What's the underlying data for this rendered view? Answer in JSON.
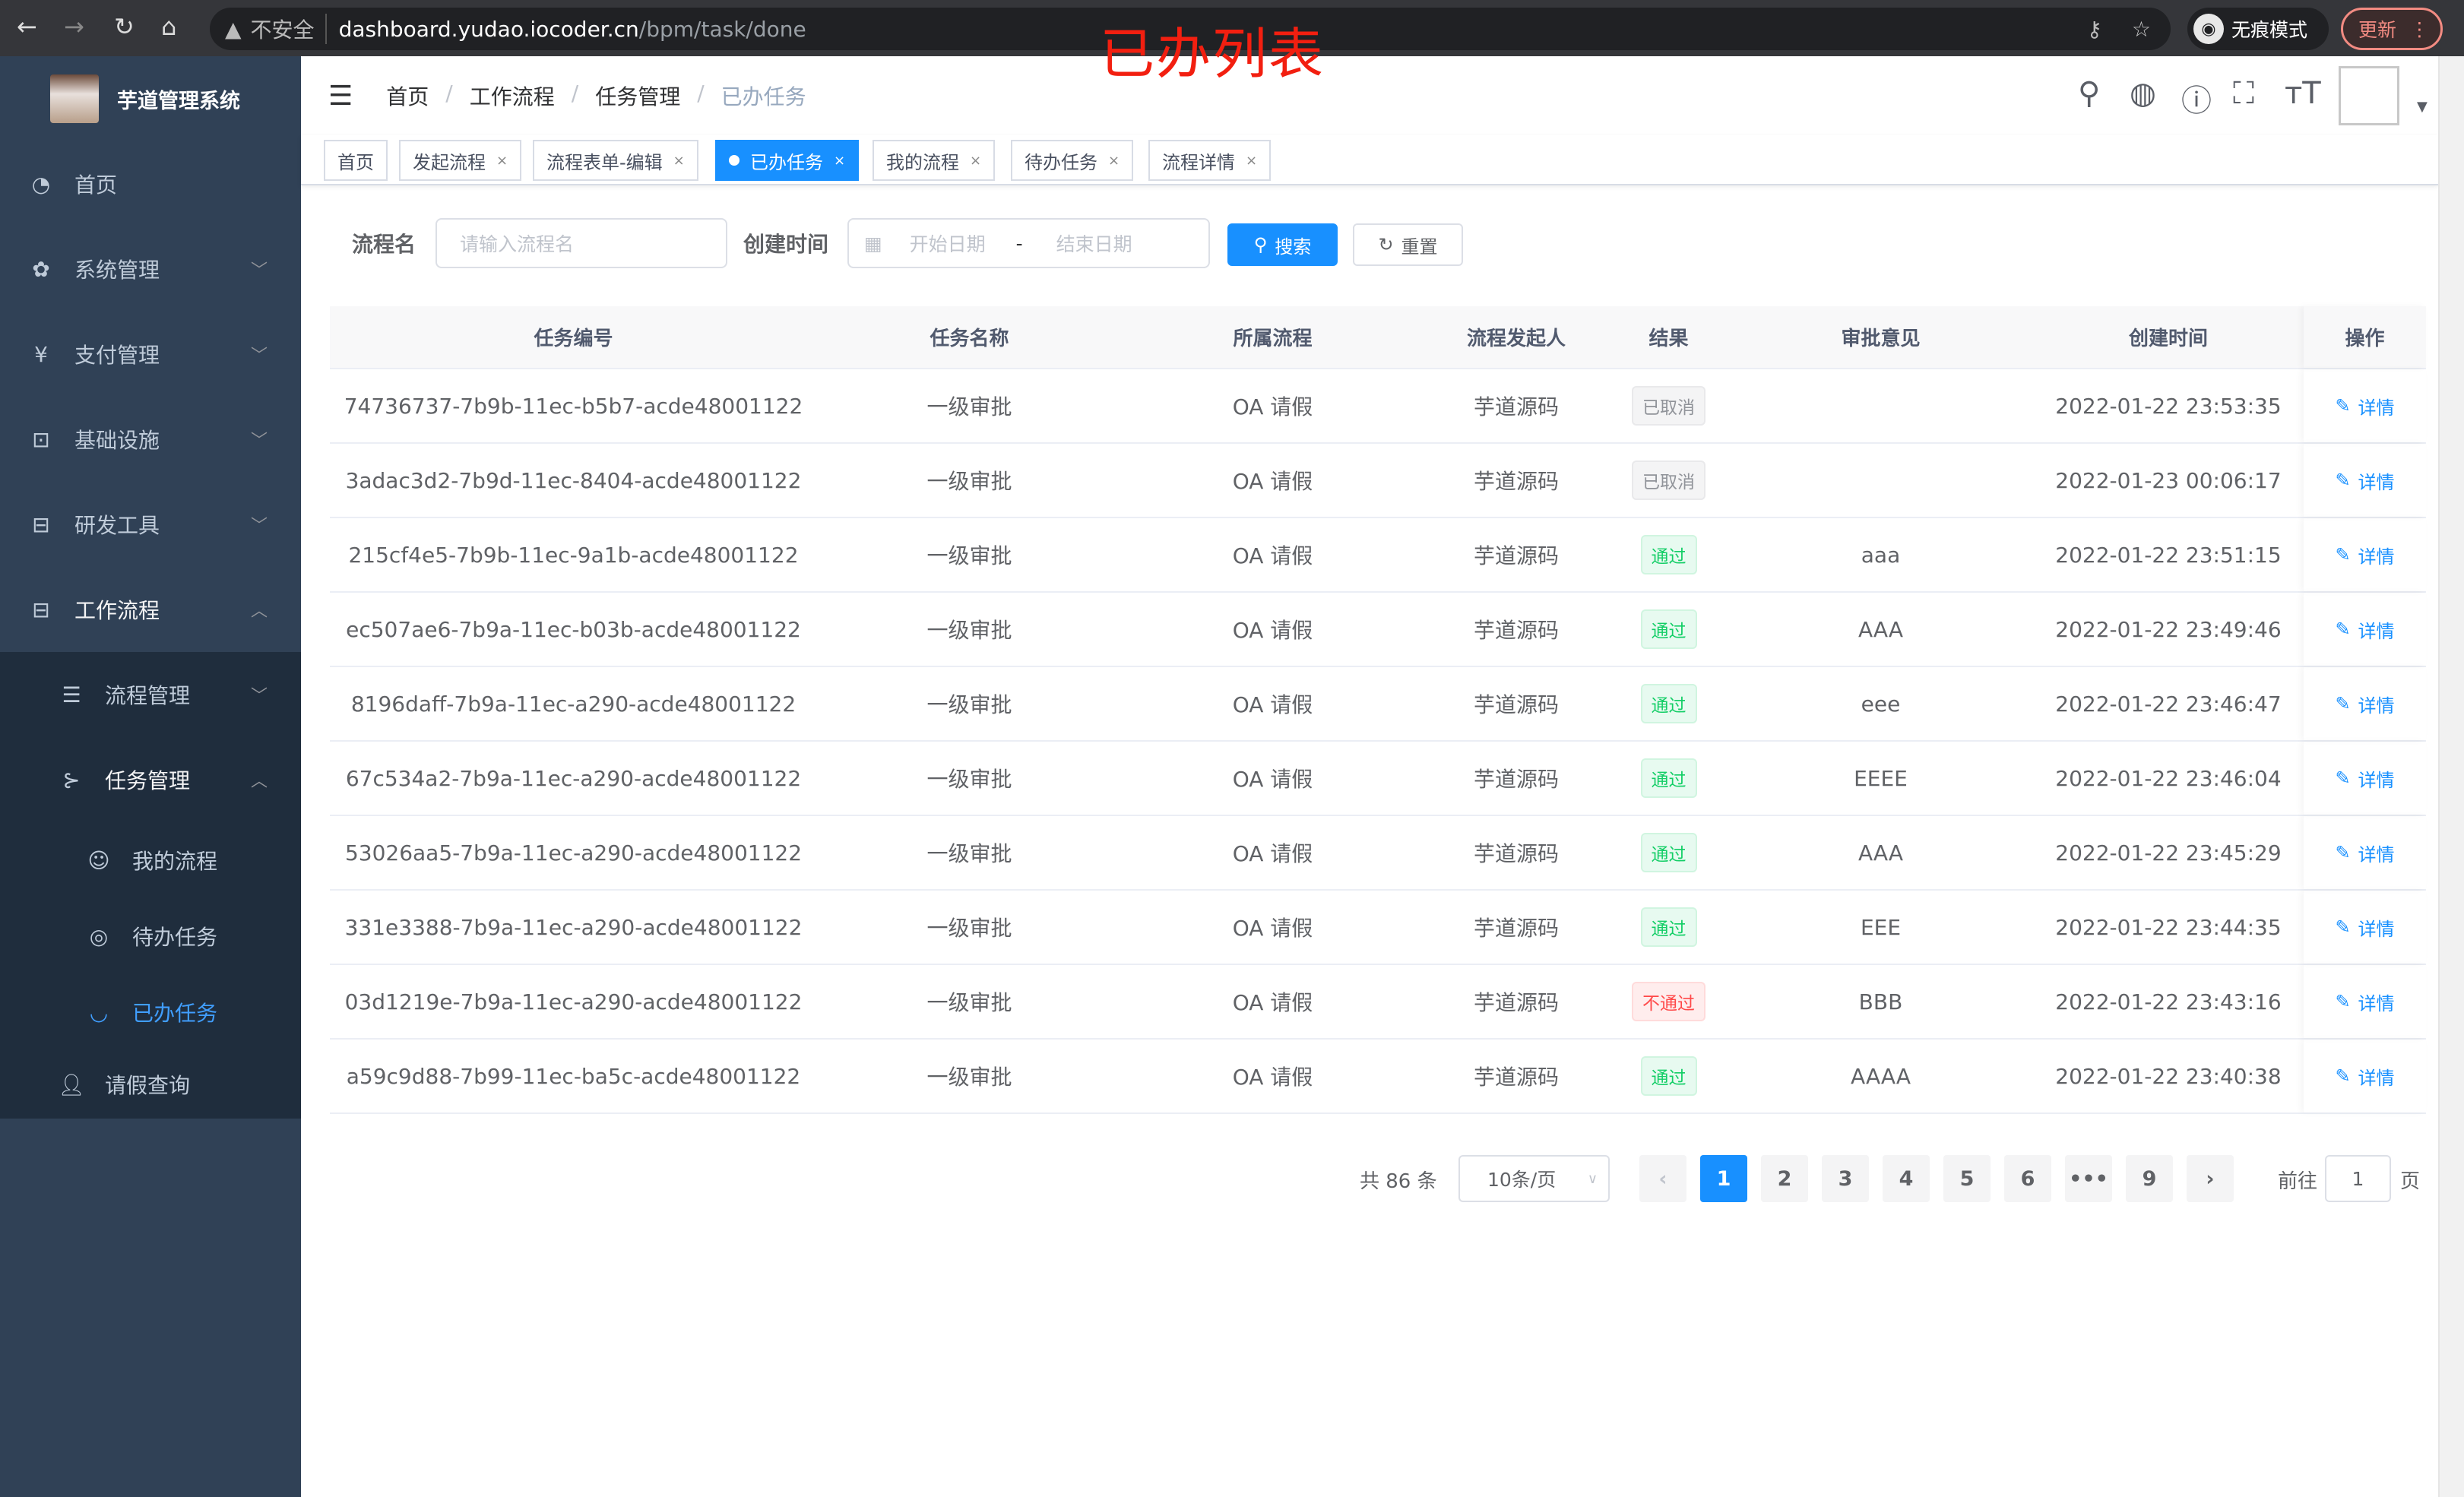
{
  "browser": {
    "security_label": "不安全",
    "url_host": "dashboard.yudao.iocoder.cn",
    "url_path": "/bpm/task/done",
    "incognito_label": "无痕模式",
    "update_label": "更新"
  },
  "annotation_title": "已办列表",
  "sidebar": {
    "app_name": "芋道管理系统",
    "items": [
      {
        "label": "首页",
        "icon": "dashboard-icon"
      },
      {
        "label": "系统管理",
        "icon": "gear-icon"
      },
      {
        "label": "支付管理",
        "icon": "yen-icon"
      },
      {
        "label": "基础设施",
        "icon": "monitor-icon"
      },
      {
        "label": "研发工具",
        "icon": "toolbox-icon"
      },
      {
        "label": "工作流程",
        "icon": "toolbox-icon"
      },
      {
        "label": "流程管理",
        "icon": "list-icon"
      },
      {
        "label": "任务管理",
        "icon": "task-icon"
      },
      {
        "label": "我的流程",
        "icon": "face-icon"
      },
      {
        "label": "待办任务",
        "icon": "eye-open-icon"
      },
      {
        "label": "已办任务",
        "icon": "eye-closed-icon"
      },
      {
        "label": "请假查询",
        "icon": "user-icon"
      }
    ]
  },
  "navbar": {
    "breadcrumb": [
      "首页",
      "工作流程",
      "任务管理",
      "已办任务"
    ]
  },
  "tags": [
    {
      "label": "首页",
      "closable": false
    },
    {
      "label": "发起流程",
      "closable": true
    },
    {
      "label": "流程表单-编辑",
      "closable": true
    },
    {
      "label": "已办任务",
      "closable": true,
      "active": true
    },
    {
      "label": "我的流程",
      "closable": true
    },
    {
      "label": "待办任务",
      "closable": true
    },
    {
      "label": "流程详情",
      "closable": true
    }
  ],
  "filter": {
    "name_label": "流程名",
    "name_placeholder": "请输入流程名",
    "time_label": "创建时间",
    "start_placeholder": "开始日期",
    "range_sep": "-",
    "end_placeholder": "结束日期",
    "search_label": "搜索",
    "reset_label": "重置"
  },
  "table": {
    "columns": [
      "任务编号",
      "任务名称",
      "所属流程",
      "流程发起人",
      "结果",
      "审批意见",
      "创建时间",
      "操作"
    ],
    "action_label": "详情",
    "rows": [
      {
        "id": "74736737-7b9b-11ec-b5b7-acde48001122",
        "name": "一级审批",
        "process": "OA 请假",
        "starter": "芋道源码",
        "result": "已取消",
        "status": "cancel",
        "comment": "",
        "time": "2022-01-22 23:53:35"
      },
      {
        "id": "3adac3d2-7b9d-11ec-8404-acde48001122",
        "name": "一级审批",
        "process": "OA 请假",
        "starter": "芋道源码",
        "result": "已取消",
        "status": "cancel",
        "comment": "",
        "time": "2022-01-23 00:06:17"
      },
      {
        "id": "215cf4e5-7b9b-11ec-9a1b-acde48001122",
        "name": "一级审批",
        "process": "OA 请假",
        "starter": "芋道源码",
        "result": "通过",
        "status": "pass",
        "comment": "aaa",
        "time": "2022-01-22 23:51:15"
      },
      {
        "id": "ec507ae6-7b9a-11ec-b03b-acde48001122",
        "name": "一级审批",
        "process": "OA 请假",
        "starter": "芋道源码",
        "result": "通过",
        "status": "pass",
        "comment": "AAA",
        "time": "2022-01-22 23:49:46"
      },
      {
        "id": "8196daff-7b9a-11ec-a290-acde48001122",
        "name": "一级审批",
        "process": "OA 请假",
        "starter": "芋道源码",
        "result": "通过",
        "status": "pass",
        "comment": "eee",
        "time": "2022-01-22 23:46:47"
      },
      {
        "id": "67c534a2-7b9a-11ec-a290-acde48001122",
        "name": "一级审批",
        "process": "OA 请假",
        "starter": "芋道源码",
        "result": "通过",
        "status": "pass",
        "comment": "EEEE",
        "time": "2022-01-22 23:46:04"
      },
      {
        "id": "53026aa5-7b9a-11ec-a290-acde48001122",
        "name": "一级审批",
        "process": "OA 请假",
        "starter": "芋道源码",
        "result": "通过",
        "status": "pass",
        "comment": "AAA",
        "time": "2022-01-22 23:45:29"
      },
      {
        "id": "331e3388-7b9a-11ec-a290-acde48001122",
        "name": "一级审批",
        "process": "OA 请假",
        "starter": "芋道源码",
        "result": "通过",
        "status": "pass",
        "comment": "EEE",
        "time": "2022-01-22 23:44:35"
      },
      {
        "id": "03d1219e-7b9a-11ec-a290-acde48001122",
        "name": "一级审批",
        "process": "OA 请假",
        "starter": "芋道源码",
        "result": "不通过",
        "status": "reject",
        "comment": "BBB",
        "time": "2022-01-22 23:43:16"
      },
      {
        "id": "a59c9d88-7b99-11ec-ba5c-acde48001122",
        "name": "一级审批",
        "process": "OA 请假",
        "starter": "芋道源码",
        "result": "通过",
        "status": "pass",
        "comment": "AAAA",
        "time": "2022-01-22 23:40:38"
      }
    ]
  },
  "pagination": {
    "total_text": "共 86 条",
    "page_size": "10条/页",
    "pages": [
      "1",
      "2",
      "3",
      "4",
      "5",
      "6",
      "•••",
      "9"
    ],
    "current": "1",
    "goto_label": "前往",
    "goto_value": "1",
    "page_unit": "页"
  },
  "colors": {
    "primary": "#1890ff",
    "sidebar_bg": "#304156",
    "submenu_bg": "#1f2d3d",
    "pass": "#13ce66",
    "reject": "#ff4949",
    "cancel": "#909399",
    "annotation": "#f21f10"
  }
}
